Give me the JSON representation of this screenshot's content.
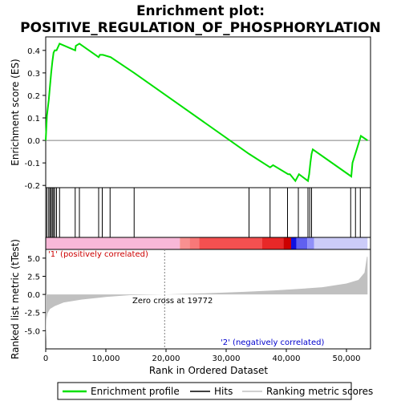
{
  "title_line1": "Enrichment plot:",
  "title_line2": "POSITIVE_REGULATION_OF_PHOSPHORYLATION",
  "colors": {
    "es_line": "#00e000",
    "hits": "#000000",
    "metric_fill": "#c0c0c0",
    "pos_label": "#cc0000",
    "neg_label": "#0000cc",
    "zero_line": "#808080"
  },
  "chart_data": [
    {
      "type": "line",
      "name": "enrichment",
      "ylabel": "Enrichment score (ES)",
      "xlim": [
        0,
        54000
      ],
      "ylim": [
        -0.21,
        0.46
      ],
      "yticks": [
        0.4,
        0.3,
        0.2,
        0.1,
        0.0,
        -0.1,
        -0.2
      ],
      "ytick_labels": [
        "0.4",
        "0.3",
        "0.2",
        "0.1",
        "0.0",
        "-0.1",
        "-0.2"
      ],
      "series": [
        {
          "name": "Enrichment profile",
          "x": [
            0,
            200,
            500,
            700,
            900,
            1100,
            1300,
            1500,
            1800,
            2300,
            4900,
            5000,
            5600,
            8800,
            9000,
            9500,
            10800,
            14700,
            33800,
            37300,
            37800,
            40300,
            40600,
            41500,
            42100,
            43600,
            43800,
            44000,
            44200,
            44400,
            50800,
            51000,
            51700,
            52400,
            53500
          ],
          "y": [
            0.0,
            0.11,
            0.18,
            0.24,
            0.3,
            0.35,
            0.39,
            0.4,
            0.4,
            0.43,
            0.4,
            0.42,
            0.43,
            0.37,
            0.38,
            0.38,
            0.37,
            0.3,
            -0.06,
            -0.12,
            -0.11,
            -0.15,
            -0.15,
            -0.18,
            -0.15,
            -0.18,
            -0.15,
            -0.1,
            -0.06,
            -0.04,
            -0.16,
            -0.1,
            -0.04,
            0.02,
            0.0
          ]
        }
      ]
    },
    {
      "type": "scatter",
      "name": "hits",
      "hit_positions": [
        200,
        500,
        700,
        900,
        1100,
        1300,
        1500,
        1800,
        2300,
        4900,
        5600,
        8800,
        9400,
        10700,
        14700,
        33800,
        37300,
        40200,
        42000,
        43600,
        43900,
        44200,
        50700,
        51500,
        52300
      ]
    },
    {
      "type": "area",
      "name": "ranked_metric",
      "ylabel": "Ranked list metric (tTest)",
      "xlabel": "Rank in Ordered Dataset",
      "xlim": [
        0,
        54000
      ],
      "ylim": [
        -7.5,
        6.2
      ],
      "xticks": [
        0,
        10000,
        20000,
        30000,
        40000,
        50000
      ],
      "xtick_labels": [
        "0",
        "10,000",
        "20,000",
        "30,000",
        "40,000",
        "50,000"
      ],
      "yticks": [
        5.0,
        2.5,
        0.0,
        -2.5,
        -5.0
      ],
      "ytick_labels": [
        "5.0",
        "2.5",
        "0.0",
        "-2.5",
        "-5.0"
      ],
      "x": [
        0,
        100,
        300,
        700,
        1500,
        3000,
        6000,
        10000,
        14000,
        19772,
        26000,
        33000,
        38000,
        42000,
        46000,
        50000,
        52000,
        53000,
        53400,
        53500
      ],
      "y": [
        -6.5,
        -3.5,
        -2.6,
        -2.0,
        -1.6,
        -1.1,
        -0.7,
        -0.35,
        -0.1,
        0.0,
        0.15,
        0.35,
        0.55,
        0.75,
        1.0,
        1.5,
        2.0,
        3.0,
        5.2,
        5.2
      ],
      "zero_cross_label": "Zero cross at 19772",
      "zero_cross_value": 19772,
      "pos_label": "'1' (positively correlated)",
      "neg_label": "'2' (negatively correlated)"
    }
  ],
  "colorbar": {
    "segments": [
      {
        "from": 0,
        "to": 22300,
        "color": "#f8b8d8"
      },
      {
        "from": 22300,
        "to": 23900,
        "color": "#f89090"
      },
      {
        "from": 23900,
        "to": 25500,
        "color": "#f87878"
      },
      {
        "from": 25500,
        "to": 36000,
        "color": "#f45050"
      },
      {
        "from": 36000,
        "to": 39500,
        "color": "#e82828"
      },
      {
        "from": 39500,
        "to": 40800,
        "color": "#cc0000"
      },
      {
        "from": 40800,
        "to": 41700,
        "color": "#1010e0"
      },
      {
        "from": 41700,
        "to": 43500,
        "color": "#6060f0"
      },
      {
        "from": 43500,
        "to": 44600,
        "color": "#9090f8"
      },
      {
        "from": 44600,
        "to": 53500,
        "color": "#ccccf8"
      }
    ]
  },
  "legend": {
    "items": [
      {
        "label": "Enrichment profile",
        "kind": "es"
      },
      {
        "label": "Hits",
        "kind": "hits"
      },
      {
        "label": "Ranking metric scores",
        "kind": "metric"
      }
    ]
  }
}
